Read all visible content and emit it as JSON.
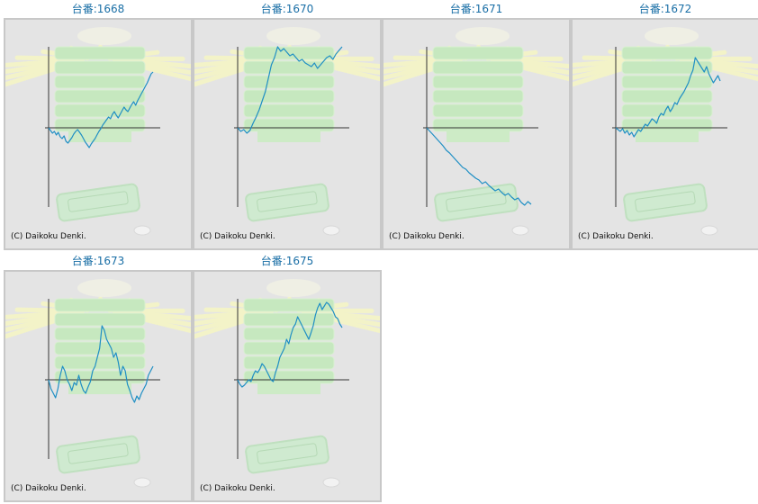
{
  "copyright": "(C) Daikoku Denki.",
  "colors": {
    "line": "#1f8fc4",
    "axis": "#333333",
    "title": "#1a6fa6",
    "panel": "#e4e4e4"
  },
  "chart_data": [
    {
      "type": "line",
      "title": "台番:1668",
      "values": [
        0,
        -3,
        -6,
        -4,
        -8,
        -5,
        -10,
        -12,
        -9,
        -15,
        -17,
        -14,
        -11,
        -7,
        -4,
        -2,
        -5,
        -8,
        -12,
        -16,
        -19,
        -22,
        -18,
        -15,
        -12,
        -8,
        -4,
        -1,
        3,
        6,
        9,
        12,
        10,
        15,
        18,
        14,
        11,
        15,
        19,
        23,
        20,
        18,
        22,
        26,
        29,
        25,
        30,
        34,
        38,
        42,
        46,
        50,
        55,
        60,
        62
      ]
    },
    {
      "type": "line",
      "title": "台番:1670",
      "values": [
        0,
        -4,
        -2,
        -6,
        -3,
        5,
        12,
        20,
        30,
        40,
        55,
        70,
        78,
        90,
        85,
        88,
        84,
        80,
        82,
        78,
        74,
        76,
        72,
        70,
        68,
        72,
        66,
        70,
        74,
        78,
        80,
        76,
        82,
        86,
        90
      ]
    },
    {
      "type": "line",
      "title": "台番:1671",
      "values": [
        0,
        -4,
        -8,
        -12,
        -16,
        -20,
        -25,
        -28,
        -32,
        -36,
        -40,
        -44,
        -46,
        -50,
        -53,
        -56,
        -58,
        -62,
        -60,
        -64,
        -67,
        -70,
        -68,
        -72,
        -75,
        -73,
        -77,
        -80,
        -78,
        -83,
        -86,
        -82,
        -85
      ]
    },
    {
      "type": "line",
      "title": "台番:1672",
      "values": [
        0,
        -2,
        -4,
        -1,
        -6,
        -3,
        -8,
        -5,
        -10,
        -6,
        -2,
        -4,
        0,
        4,
        2,
        6,
        10,
        8,
        5,
        12,
        16,
        14,
        20,
        24,
        18,
        22,
        28,
        26,
        32,
        36,
        40,
        45,
        50,
        58,
        64,
        78,
        74,
        70,
        66,
        62,
        68,
        60,
        55,
        50,
        54,
        58,
        52
      ]
    },
    {
      "type": "line",
      "title": "台番:1673",
      "values": [
        0,
        -10,
        -15,
        -20,
        -10,
        5,
        15,
        10,
        0,
        -5,
        -12,
        -3,
        -6,
        5,
        -5,
        -12,
        -15,
        -8,
        -2,
        10,
        15,
        25,
        35,
        60,
        55,
        45,
        40,
        35,
        25,
        30,
        20,
        5,
        15,
        10,
        -5,
        -12,
        -20,
        -25,
        -18,
        -22,
        -15,
        -10,
        -5,
        5,
        10,
        15
      ]
    },
    {
      "type": "line",
      "title": "台番:1675",
      "values": [
        0,
        -5,
        -8,
        -6,
        -3,
        0,
        -2,
        5,
        10,
        8,
        12,
        18,
        15,
        10,
        5,
        0,
        -2,
        8,
        15,
        25,
        30,
        35,
        45,
        40,
        50,
        58,
        62,
        70,
        65,
        60,
        55,
        50,
        45,
        52,
        60,
        72,
        80,
        85,
        78,
        82,
        86,
        84,
        80,
        76,
        70,
        68,
        62,
        58
      ]
    }
  ]
}
